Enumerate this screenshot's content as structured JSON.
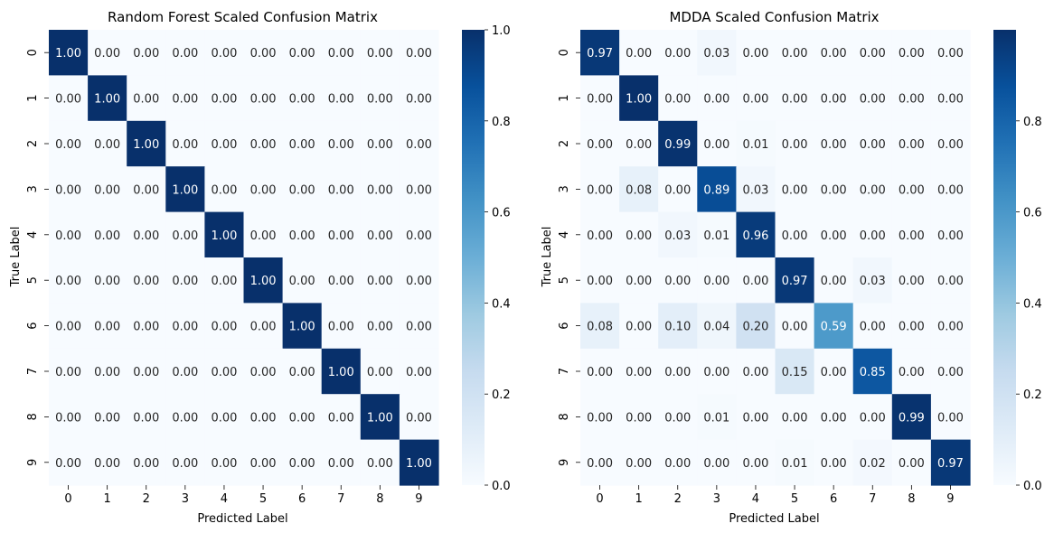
{
  "chart_data": [
    {
      "type": "heatmap",
      "title": "Random Forest Scaled Confusion Matrix",
      "xlabel": "Predicted Label",
      "ylabel": "True Label",
      "x_categories": [
        "0",
        "1",
        "2",
        "3",
        "4",
        "5",
        "6",
        "7",
        "8",
        "9"
      ],
      "y_categories": [
        "0",
        "1",
        "2",
        "3",
        "4",
        "5",
        "6",
        "7",
        "8",
        "9"
      ],
      "values": [
        [
          1.0,
          0.0,
          0.0,
          0.0,
          0.0,
          0.0,
          0.0,
          0.0,
          0.0,
          0.0
        ],
        [
          0.0,
          1.0,
          0.0,
          0.0,
          0.0,
          0.0,
          0.0,
          0.0,
          0.0,
          0.0
        ],
        [
          0.0,
          0.0,
          1.0,
          0.0,
          0.0,
          0.0,
          0.0,
          0.0,
          0.0,
          0.0
        ],
        [
          0.0,
          0.0,
          0.0,
          1.0,
          0.0,
          0.0,
          0.0,
          0.0,
          0.0,
          0.0
        ],
        [
          0.0,
          0.0,
          0.0,
          0.0,
          1.0,
          0.0,
          0.0,
          0.0,
          0.0,
          0.0
        ],
        [
          0.0,
          0.0,
          0.0,
          0.0,
          0.0,
          1.0,
          0.0,
          0.0,
          0.0,
          0.0
        ],
        [
          0.0,
          0.0,
          0.0,
          0.0,
          0.0,
          0.0,
          1.0,
          0.0,
          0.0,
          0.0
        ],
        [
          0.0,
          0.0,
          0.0,
          0.0,
          0.0,
          0.0,
          0.0,
          1.0,
          0.0,
          0.0
        ],
        [
          0.0,
          0.0,
          0.0,
          0.0,
          0.0,
          0.0,
          0.0,
          0.0,
          1.0,
          0.0
        ],
        [
          0.0,
          0.0,
          0.0,
          0.0,
          0.0,
          0.0,
          0.0,
          0.0,
          0.0,
          1.0
        ]
      ],
      "colormap": "Blues",
      "colorbar": {
        "min": 0.0,
        "max": 1.0,
        "ticks": [
          "0.0",
          "0.2",
          "0.4",
          "0.6",
          "0.8",
          "1.0"
        ]
      }
    },
    {
      "type": "heatmap",
      "title": "MDDA Scaled Confusion Matrix",
      "xlabel": "Predicted Label",
      "ylabel": "True Label",
      "x_categories": [
        "0",
        "1",
        "2",
        "3",
        "4",
        "5",
        "6",
        "7",
        "8",
        "9"
      ],
      "y_categories": [
        "0",
        "1",
        "2",
        "3",
        "4",
        "5",
        "6",
        "7",
        "8",
        "9"
      ],
      "values": [
        [
          0.97,
          0.0,
          0.0,
          0.03,
          0.0,
          0.0,
          0.0,
          0.0,
          0.0,
          0.0
        ],
        [
          0.0,
          1.0,
          0.0,
          0.0,
          0.0,
          0.0,
          0.0,
          0.0,
          0.0,
          0.0
        ],
        [
          0.0,
          0.0,
          0.99,
          0.0,
          0.01,
          0.0,
          0.0,
          0.0,
          0.0,
          0.0
        ],
        [
          0.0,
          0.08,
          0.0,
          0.89,
          0.03,
          0.0,
          0.0,
          0.0,
          0.0,
          0.0
        ],
        [
          0.0,
          0.0,
          0.03,
          0.01,
          0.96,
          0.0,
          0.0,
          0.0,
          0.0,
          0.0
        ],
        [
          0.0,
          0.0,
          0.0,
          0.0,
          0.0,
          0.97,
          0.0,
          0.03,
          0.0,
          0.0
        ],
        [
          0.08,
          0.0,
          0.1,
          0.04,
          0.2,
          0.0,
          0.59,
          0.0,
          0.0,
          0.0
        ],
        [
          0.0,
          0.0,
          0.0,
          0.0,
          0.0,
          0.15,
          0.0,
          0.85,
          0.0,
          0.0
        ],
        [
          0.0,
          0.0,
          0.0,
          0.01,
          0.0,
          0.0,
          0.0,
          0.0,
          0.99,
          0.0
        ],
        [
          0.0,
          0.0,
          0.0,
          0.0,
          0.0,
          0.01,
          0.0,
          0.02,
          0.0,
          0.97
        ]
      ],
      "colormap": "Blues",
      "colorbar": {
        "min": 0.0,
        "max": 1.0,
        "ticks": [
          "0.0",
          "0.2",
          "0.4",
          "0.6",
          "0.8"
        ]
      }
    }
  ]
}
